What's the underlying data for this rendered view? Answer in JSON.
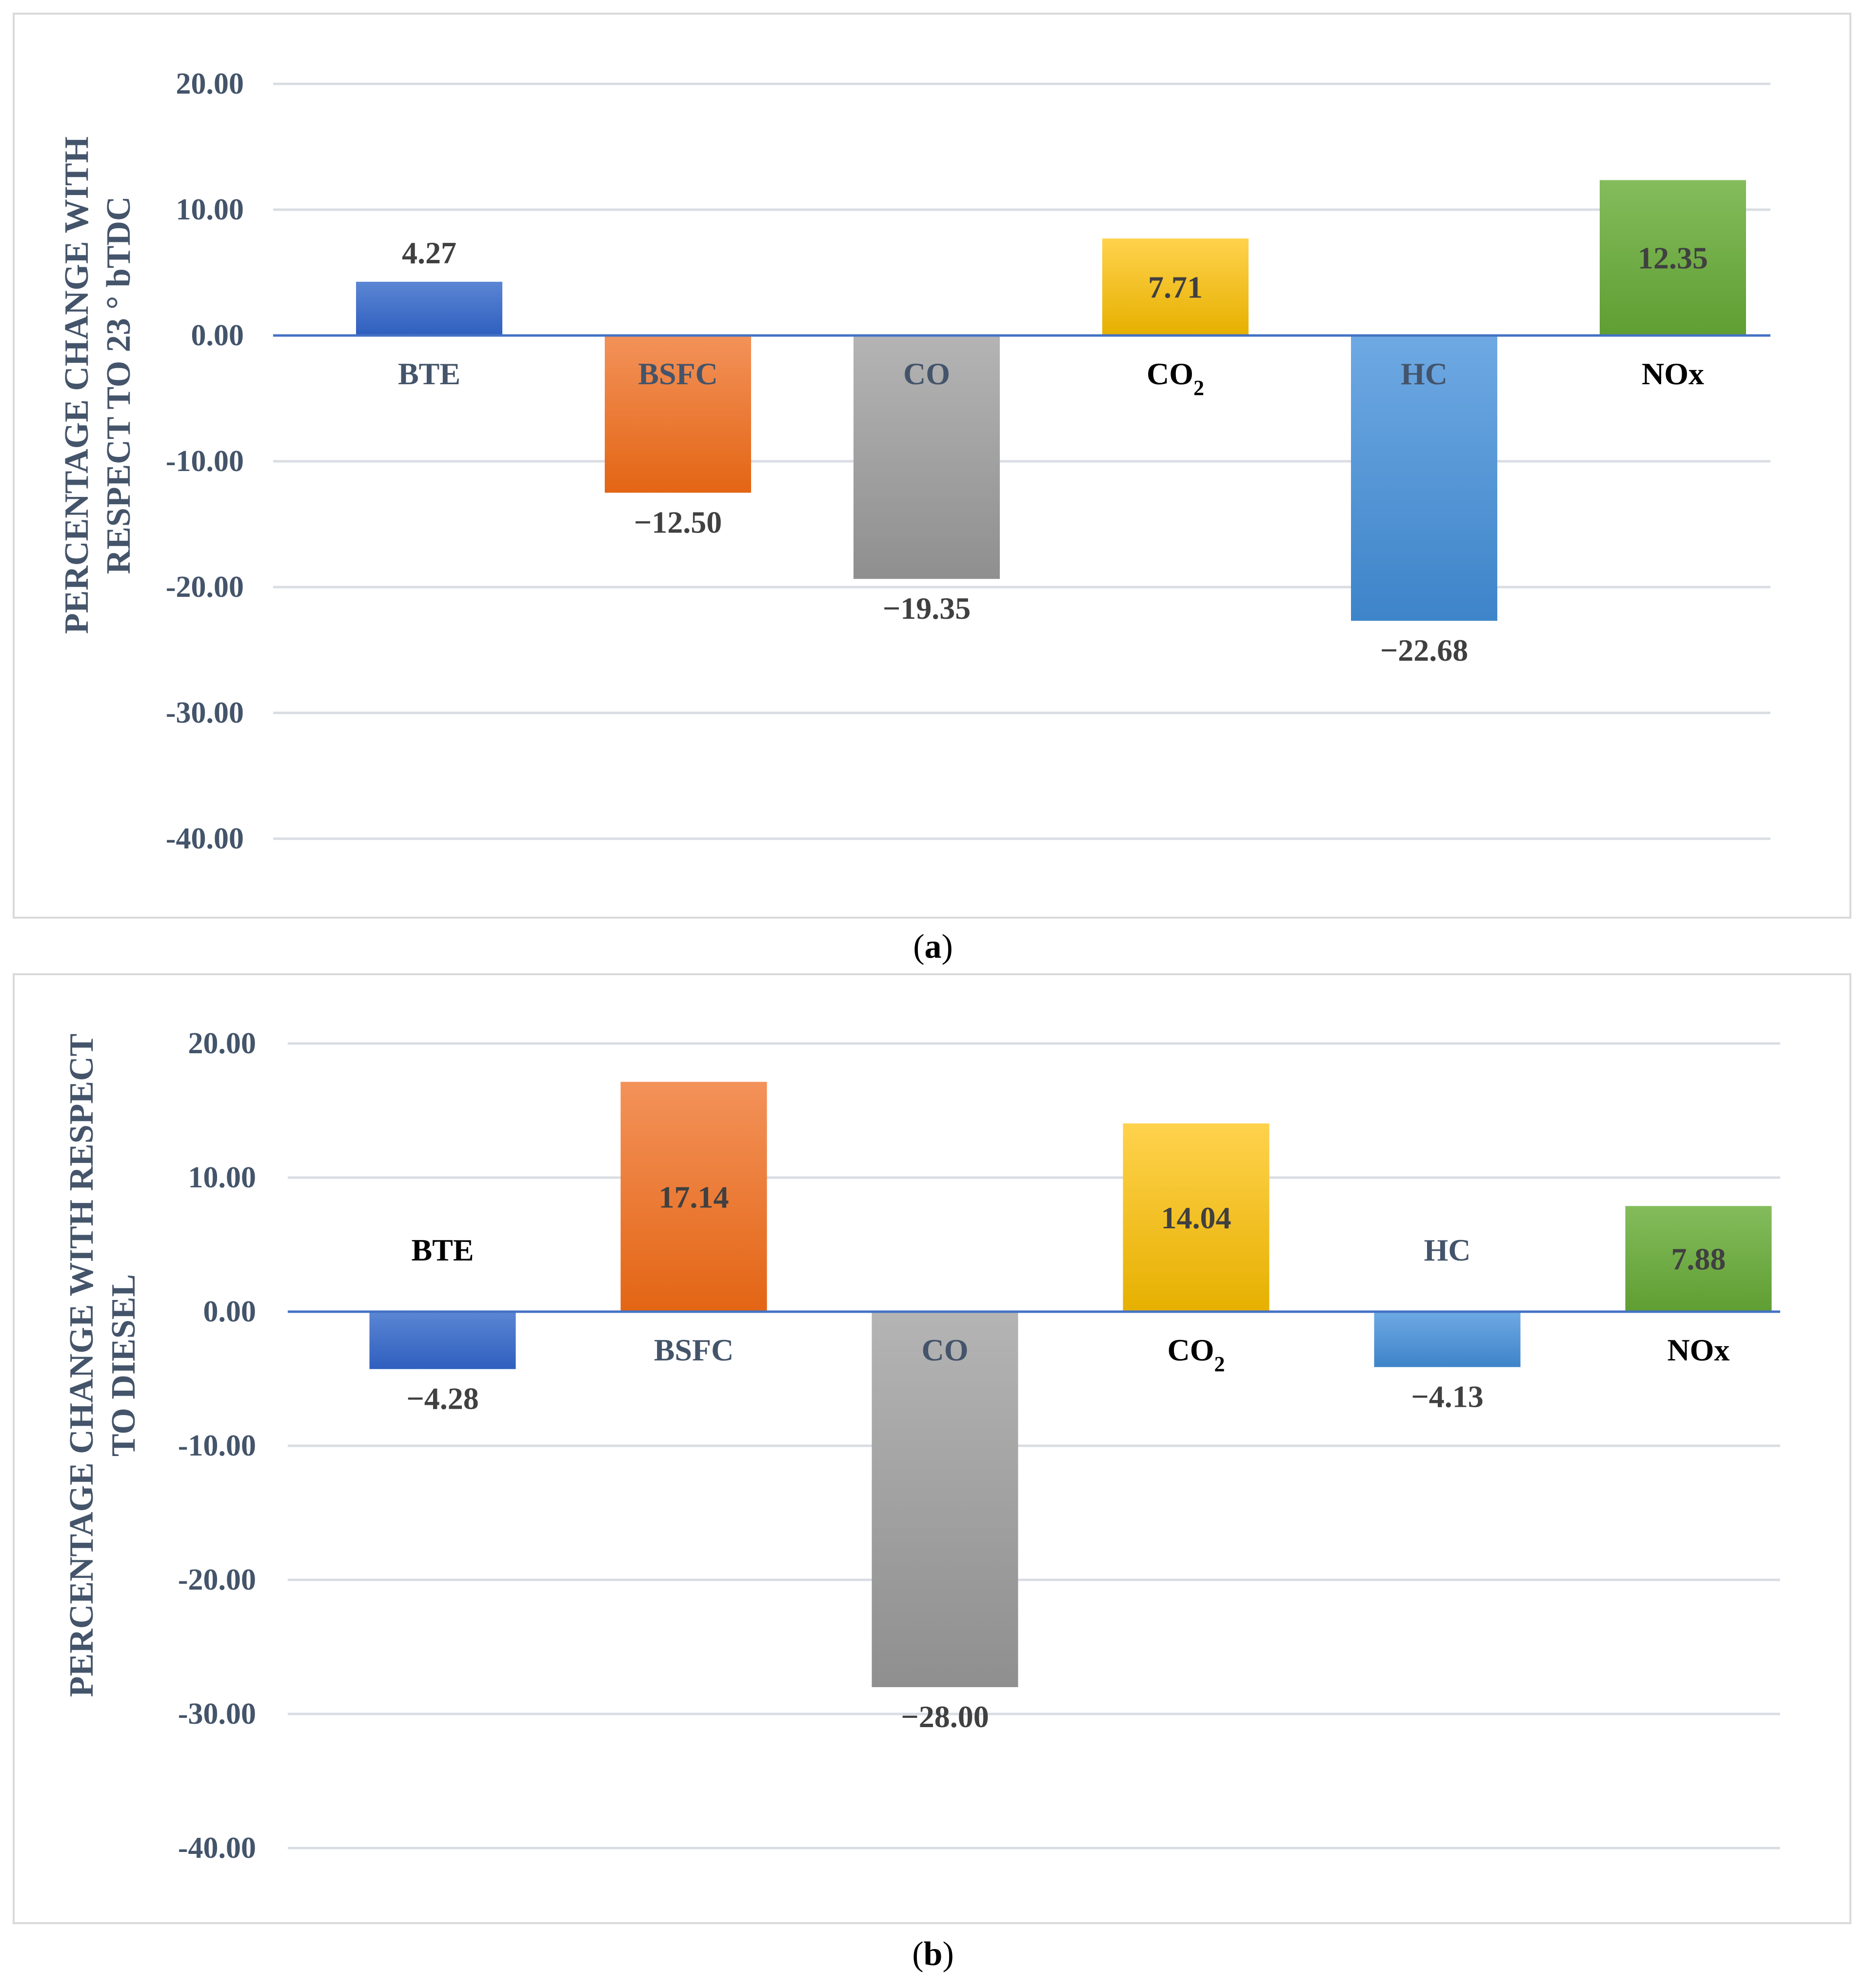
{
  "chart_data": [
    {
      "type": "bar",
      "panel_label": "a",
      "categories": [
        "BTE",
        "BSFC",
        "CO",
        "CO2",
        "HC",
        "NOx"
      ],
      "values": [
        4.27,
        -12.5,
        -19.35,
        7.71,
        -22.68,
        12.35
      ],
      "value_labels": [
        "4.27",
        "−12.50",
        "−19.35",
        "7.71",
        "−22.68",
        "12.35"
      ],
      "ylabel_lines": [
        "PERCENTAGE CHANGE WITH",
        "RESPECT TO 23 ° bTDC"
      ],
      "ylim": [
        -40,
        20
      ],
      "yticks": [
        20,
        10,
        0,
        -10,
        -20,
        -30,
        -40
      ],
      "ytick_labels": [
        "20.00",
        "10.00",
        "0.00",
        "-10.00",
        "-20.00",
        "-30.00",
        "-40.00"
      ],
      "grid": true,
      "legend": "none"
    },
    {
      "type": "bar",
      "panel_label": "b",
      "categories": [
        "BTE",
        "BSFC",
        "CO",
        "CO2",
        "HC",
        "NOx"
      ],
      "values": [
        -4.28,
        17.14,
        -28.0,
        14.04,
        -4.13,
        7.88
      ],
      "value_labels": [
        "−4.28",
        "17.14",
        "−28.00",
        "14.04",
        "−4.13",
        "7.88"
      ],
      "ylabel_lines": [
        "PERCENTAGE CHANGE WITH RESPECT",
        "TO DIESEL"
      ],
      "ylim": [
        -40,
        20
      ],
      "yticks": [
        20,
        10,
        0,
        -10,
        -20,
        -30,
        -40
      ],
      "ytick_labels": [
        "20.00",
        "10.00",
        "0.00",
        "-10.00",
        "-20.00",
        "-30.00",
        "-40.00"
      ],
      "grid": true,
      "legend": "none"
    }
  ],
  "captions": [
    "a",
    "b"
  ],
  "series_colors": {
    "BTE": [
      "#5b86d4",
      "#2f5fbf"
    ],
    "BSFC": [
      "#f3925a",
      "#e36514"
    ],
    "CO": [
      "#b4b4b4",
      "#8f8f8f"
    ],
    "CO2": [
      "#ffd24d",
      "#e6b000"
    ],
    "HC": [
      "#6ea9e3",
      "#3e84c9"
    ],
    "NOx": [
      "#84bc5c",
      "#5f9e32"
    ]
  },
  "colors": {
    "axis_text": "#44546a",
    "grid": "#d9dde3",
    "zero_line": "#4472c4"
  }
}
